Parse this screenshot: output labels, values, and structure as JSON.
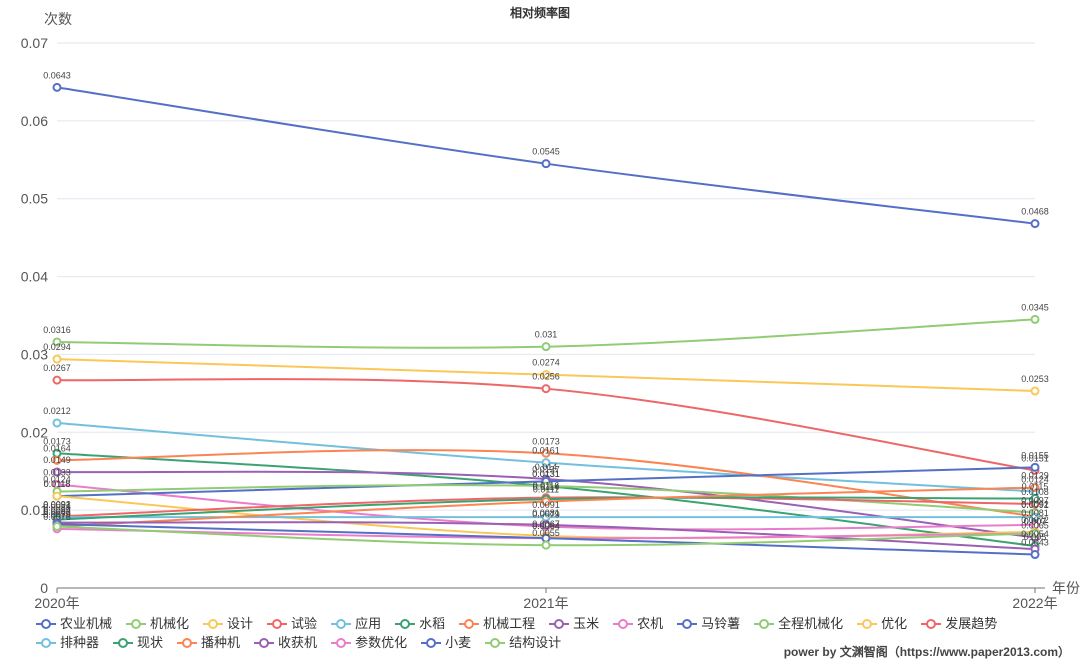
{
  "chart_data": {
    "type": "line",
    "title": "相对频率图",
    "ylabel": "次数",
    "xlabel": "年份",
    "x": [
      "2020年",
      "2021年",
      "2022年"
    ],
    "ylim": [
      0,
      0.07
    ],
    "yticks": [
      "0",
      "0.01",
      "0.02",
      "0.03",
      "0.04",
      "0.05",
      "0.06",
      "0.07"
    ],
    "grid": true,
    "legend_position": "bottom",
    "series": [
      {
        "name": "农业机械",
        "color": "#5470c6",
        "values": [
          0.0643,
          0.0545,
          0.0468
        ]
      },
      {
        "name": "机械化",
        "color": "#91cc75",
        "values": [
          0.0316,
          0.031,
          0.0345
        ]
      },
      {
        "name": "设计",
        "color": "#fac858",
        "values": [
          0.0294,
          0.0274,
          0.0253
        ]
      },
      {
        "name": "试验",
        "color": "#ee6666",
        "values": [
          0.0267,
          0.0256,
          0.0151
        ]
      },
      {
        "name": "应用",
        "color": "#73c0de",
        "values": [
          0.0212,
          0.0161,
          0.0124
        ]
      },
      {
        "name": "水稻",
        "color": "#3ba272",
        "values": [
          0.0173,
          0.0131,
          0.0054
        ]
      },
      {
        "name": "机械工程",
        "color": "#fc8452",
        "values": [
          0.0164,
          0.0173,
          0.0092
        ]
      },
      {
        "name": "玉米",
        "color": "#9a60b4",
        "values": [
          0.0149,
          0.014,
          0.0065
        ]
      },
      {
        "name": "农机",
        "color": "#ea7ccc",
        "values": [
          0.0133,
          0.0079,
          0.0081
        ]
      },
      {
        "name": "马铃薯",
        "color": "#5470c6",
        "values": [
          0.0118,
          0.0137,
          0.0155
        ]
      },
      {
        "name": "全程机械化",
        "color": "#91cc75",
        "values": [
          0.0124,
          0.0131,
          0.0097
        ]
      },
      {
        "name": "优化",
        "color": "#fac858",
        "values": [
          0.0118,
          0.0067,
          0.0072
        ]
      },
      {
        "name": "发展趋势",
        "color": "#ee6666",
        "values": [
          0.0092,
          0.0116,
          0.0108
        ]
      },
      {
        "name": "排种器",
        "color": "#73c0de",
        "values": [
          0.0091,
          0.0091,
          0.0091
        ]
      },
      {
        "name": "现状",
        "color": "#3ba272",
        "values": [
          0.0088,
          0.0114,
          0.0115
        ]
      },
      {
        "name": "播种机",
        "color": "#fc8452",
        "values": [
          0.0079,
          0.0111,
          0.0129
        ]
      },
      {
        "name": "收获机",
        "color": "#9a60b4",
        "values": [
          0.0084,
          0.0081,
          0.005
        ]
      },
      {
        "name": "参数优化",
        "color": "#ea7ccc",
        "values": [
          0.0076,
          0.0064,
          0.007
        ]
      },
      {
        "name": "小麦",
        "color": "#5470c6",
        "values": [
          0.0082,
          0.0064,
          0.0043
        ]
      },
      {
        "name": "结构设计",
        "color": "#91cc75",
        "values": [
          0.0079,
          0.0055,
          0.007
        ]
      }
    ]
  },
  "footer": "power by 文渊智阁（https://www.paper2013.com）"
}
